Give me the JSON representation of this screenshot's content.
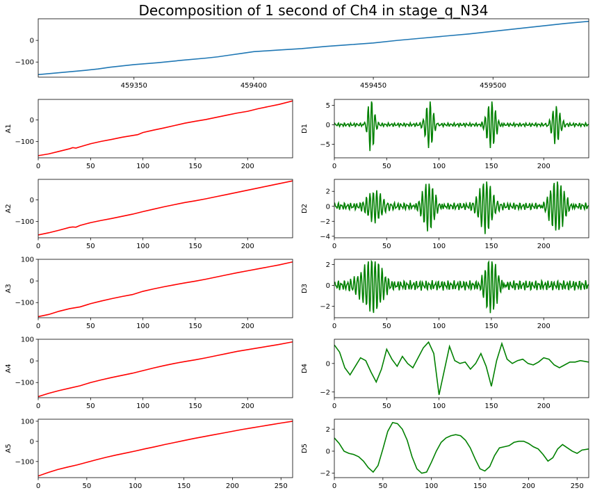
{
  "figure": {
    "title": "Decomposition of 1 second of Ch4 in stage_q_N34"
  },
  "chart_data": [
    {
      "id": "original",
      "type": "line",
      "title": "Decomposition of 1 second of Ch4 in stage_q_N34",
      "ylabel": "",
      "xlim": [
        459310,
        459540
      ],
      "ylim": [
        -170,
        100
      ],
      "xticks": [
        459350,
        459400,
        459450,
        459500
      ],
      "yticks": [
        -100,
        0
      ],
      "color": "#1f77b4",
      "series": [
        {
          "x": [
            459310,
            459320,
            459330,
            459335,
            459340,
            459345,
            459350,
            459360,
            459370,
            459380,
            459385,
            459390,
            459395,
            459400,
            459410,
            459420,
            459430,
            459440,
            459450,
            459460,
            459470,
            459480,
            459490,
            459500,
            459510,
            459520,
            459530,
            459540
          ],
          "y": [
            -158,
            -148,
            -138,
            -132,
            -124,
            -118,
            -112,
            -103,
            -92,
            -82,
            -76,
            -68,
            -60,
            -52,
            -45,
            -38,
            -28,
            -20,
            -12,
            0,
            10,
            20,
            30,
            42,
            54,
            66,
            78,
            88
          ]
        }
      ]
    },
    {
      "id": "A1",
      "type": "line",
      "ylabel": "A1",
      "xlim": [
        0,
        243
      ],
      "ylim": [
        -175,
        95
      ],
      "xticks": [
        0,
        50,
        100,
        150,
        200
      ],
      "yticks": [
        -100,
        0
      ],
      "color": "#ff0000",
      "series": [
        {
          "x": [
            0,
            10,
            20,
            30,
            33,
            36,
            40,
            50,
            60,
            70,
            80,
            90,
            95,
            100,
            110,
            120,
            130,
            140,
            150,
            160,
            170,
            180,
            190,
            200,
            210,
            220,
            230,
            243
          ],
          "y": [
            -165,
            -157,
            -145,
            -133,
            -128,
            -130,
            -124,
            -110,
            -99,
            -90,
            -80,
            -72,
            -68,
            -58,
            -47,
            -37,
            -26,
            -15,
            -6,
            2,
            12,
            22,
            32,
            40,
            52,
            62,
            72,
            88
          ]
        }
      ]
    },
    {
      "id": "D1",
      "type": "line",
      "ylabel": "D1",
      "xlim": [
        0,
        243
      ],
      "ylim": [
        -8.5,
        6.5
      ],
      "xticks": [
        0,
        50,
        100,
        150,
        200
      ],
      "yticks": [
        -5,
        0,
        5
      ],
      "color": "#008000",
      "bursts": [
        [
          30,
          40,
          7.5
        ],
        [
          85,
          97,
          6.5
        ],
        [
          143,
          157,
          6.0
        ],
        [
          205,
          218,
          5.2
        ]
      ]
    },
    {
      "id": "A2",
      "type": "line",
      "ylabel": "A2",
      "xlim": [
        0,
        243
      ],
      "ylim": [
        -175,
        95
      ],
      "xticks": [
        0,
        50,
        100,
        150,
        200
      ],
      "yticks": [
        -100,
        0
      ],
      "color": "#ff0000",
      "series": [
        {
          "x": [
            0,
            10,
            20,
            30,
            33,
            36,
            40,
            50,
            60,
            70,
            80,
            90,
            100,
            110,
            120,
            130,
            140,
            150,
            160,
            170,
            180,
            190,
            200,
            210,
            220,
            230,
            243
          ],
          "y": [
            -162,
            -152,
            -140,
            -127,
            -125,
            -126,
            -118,
            -105,
            -95,
            -86,
            -76,
            -66,
            -54,
            -43,
            -32,
            -22,
            -12,
            -4,
            5,
            15,
            25,
            35,
            45,
            55,
            65,
            75,
            88
          ]
        }
      ]
    },
    {
      "id": "D2",
      "type": "line",
      "ylabel": "D2",
      "xlim": [
        0,
        243
      ],
      "ylim": [
        -4.2,
        3.6
      ],
      "xticks": [
        0,
        50,
        100,
        150,
        200
      ],
      "yticks": [
        -4,
        -2,
        0,
        2
      ],
      "color": "#008000",
      "bursts": [
        [
          28,
          52,
          2.2
        ],
        [
          80,
          100,
          3.0
        ],
        [
          135,
          155,
          3.8
        ],
        [
          200,
          225,
          3.2
        ]
      ]
    },
    {
      "id": "A3",
      "type": "line",
      "ylabel": "A3",
      "xlim": [
        0,
        243
      ],
      "ylim": [
        -170,
        100
      ],
      "xticks": [
        0,
        50,
        100,
        150,
        200
      ],
      "yticks": [
        -100,
        0,
        100
      ],
      "color": "#ff0000",
      "series": [
        {
          "x": [
            0,
            10,
            20,
            30,
            40,
            50,
            60,
            70,
            80,
            90,
            100,
            110,
            120,
            130,
            140,
            150,
            160,
            170,
            180,
            190,
            200,
            210,
            220,
            230,
            243
          ],
          "y": [
            -165,
            -155,
            -140,
            -128,
            -120,
            -105,
            -93,
            -82,
            -72,
            -63,
            -48,
            -37,
            -27,
            -18,
            -9,
            -1,
            8,
            18,
            28,
            38,
            47,
            56,
            65,
            74,
            88
          ]
        }
      ]
    },
    {
      "id": "D3",
      "type": "line",
      "ylabel": "D3",
      "xlim": [
        0,
        243
      ],
      "ylim": [
        -3.1,
        2.5
      ],
      "xticks": [
        0,
        50,
        100,
        150,
        200
      ],
      "yticks": [
        -2,
        0,
        2
      ],
      "color": "#008000",
      "bursts": [
        [
          20,
          50,
          2.8
        ],
        [
          140,
          160,
          2.5
        ]
      ]
    },
    {
      "id": "A4",
      "type": "line",
      "ylabel": "A4",
      "xlim": [
        0,
        243
      ],
      "ylim": [
        -170,
        100
      ],
      "xticks": [
        0,
        50,
        100,
        150,
        200
      ],
      "yticks": [
        -100,
        0,
        100
      ],
      "color": "#ff0000",
      "series": [
        {
          "x": [
            0,
            10,
            20,
            30,
            40,
            50,
            60,
            70,
            80,
            90,
            100,
            110,
            120,
            130,
            140,
            150,
            160,
            170,
            180,
            190,
            200,
            210,
            220,
            230,
            243
          ],
          "y": [
            -165,
            -150,
            -137,
            -126,
            -115,
            -100,
            -88,
            -77,
            -67,
            -57,
            -45,
            -33,
            -22,
            -12,
            -3,
            5,
            14,
            24,
            34,
            44,
            52,
            60,
            68,
            76,
            88
          ]
        }
      ]
    },
    {
      "id": "D4",
      "type": "line",
      "ylabel": "D4",
      "xlim": [
        0,
        243
      ],
      "ylim": [
        -2.4,
        1.7
      ],
      "xticks": [
        0,
        50,
        100,
        150,
        200
      ],
      "yticks": [
        -2,
        0
      ],
      "color": "#008000",
      "series": [
        {
          "x": [
            0,
            5,
            10,
            15,
            20,
            25,
            30,
            35,
            40,
            45,
            50,
            55,
            60,
            65,
            70,
            75,
            80,
            85,
            90,
            95,
            100,
            105,
            110,
            115,
            120,
            125,
            130,
            135,
            140,
            145,
            150,
            155,
            160,
            165,
            170,
            175,
            180,
            185,
            190,
            195,
            200,
            205,
            210,
            215,
            220,
            225,
            230,
            235,
            243
          ],
          "y": [
            1.3,
            0.8,
            -0.3,
            -0.8,
            -0.2,
            0.4,
            0.2,
            -0.6,
            -1.3,
            -0.4,
            1.0,
            0.3,
            -0.2,
            0.5,
            0.0,
            -0.3,
            0.4,
            1.1,
            1.5,
            0.7,
            -2.2,
            -0.5,
            1.2,
            0.2,
            0.0,
            0.1,
            -0.4,
            0.0,
            0.7,
            -0.2,
            -1.6,
            0.2,
            1.4,
            0.3,
            0.0,
            0.2,
            0.3,
            0.0,
            -0.1,
            0.1,
            0.4,
            0.3,
            -0.1,
            -0.3,
            -0.1,
            0.1,
            0.1,
            0.2,
            0.1
          ]
        }
      ]
    },
    {
      "id": "A5",
      "type": "line",
      "ylabel": "A5",
      "xlim": [
        0,
        262
      ],
      "ylim": [
        -180,
        110
      ],
      "xticks": [
        0,
        50,
        100,
        150,
        200,
        250
      ],
      "yticks": [
        -100,
        0,
        100
      ],
      "color": "#ff0000",
      "series": [
        {
          "x": [
            0,
            10,
            20,
            30,
            40,
            50,
            60,
            70,
            80,
            90,
            100,
            110,
            120,
            130,
            140,
            150,
            160,
            170,
            180,
            190,
            200,
            210,
            220,
            230,
            240,
            250,
            262
          ],
          "y": [
            -172,
            -155,
            -140,
            -128,
            -117,
            -104,
            -91,
            -79,
            -68,
            -58,
            -48,
            -37,
            -27,
            -16,
            -6,
            4,
            14,
            23,
            32,
            41,
            50,
            59,
            67,
            75,
            83,
            91,
            100
          ]
        }
      ]
    },
    {
      "id": "D5",
      "type": "line",
      "ylabel": "D5",
      "xlim": [
        0,
        262
      ],
      "ylim": [
        -2.4,
        2.9
      ],
      "xticks": [
        0,
        50,
        100,
        150,
        200,
        250
      ],
      "yticks": [
        -2,
        0,
        2
      ],
      "color": "#008000",
      "series": [
        {
          "x": [
            0,
            5,
            10,
            15,
            20,
            25,
            30,
            35,
            40,
            45,
            50,
            55,
            60,
            65,
            70,
            75,
            80,
            85,
            90,
            95,
            100,
            105,
            110,
            115,
            120,
            125,
            130,
            135,
            140,
            145,
            150,
            155,
            160,
            165,
            170,
            175,
            180,
            185,
            190,
            195,
            200,
            205,
            210,
            215,
            220,
            225,
            230,
            235,
            240,
            245,
            250,
            255,
            262
          ],
          "y": [
            1.2,
            0.7,
            0.0,
            -0.2,
            -0.3,
            -0.5,
            -0.9,
            -1.5,
            -1.9,
            -1.3,
            0.2,
            1.8,
            2.6,
            2.5,
            2.0,
            1.0,
            -0.5,
            -1.6,
            -2.0,
            -1.9,
            -1.0,
            0.0,
            0.8,
            1.2,
            1.4,
            1.5,
            1.4,
            1.0,
            0.3,
            -0.7,
            -1.6,
            -1.8,
            -1.4,
            -0.4,
            0.3,
            0.4,
            0.5,
            0.8,
            0.9,
            0.9,
            0.7,
            0.4,
            0.2,
            -0.3,
            -0.9,
            -0.6,
            0.2,
            0.6,
            0.3,
            0.0,
            -0.2,
            0.1,
            0.2
          ]
        }
      ]
    }
  ]
}
